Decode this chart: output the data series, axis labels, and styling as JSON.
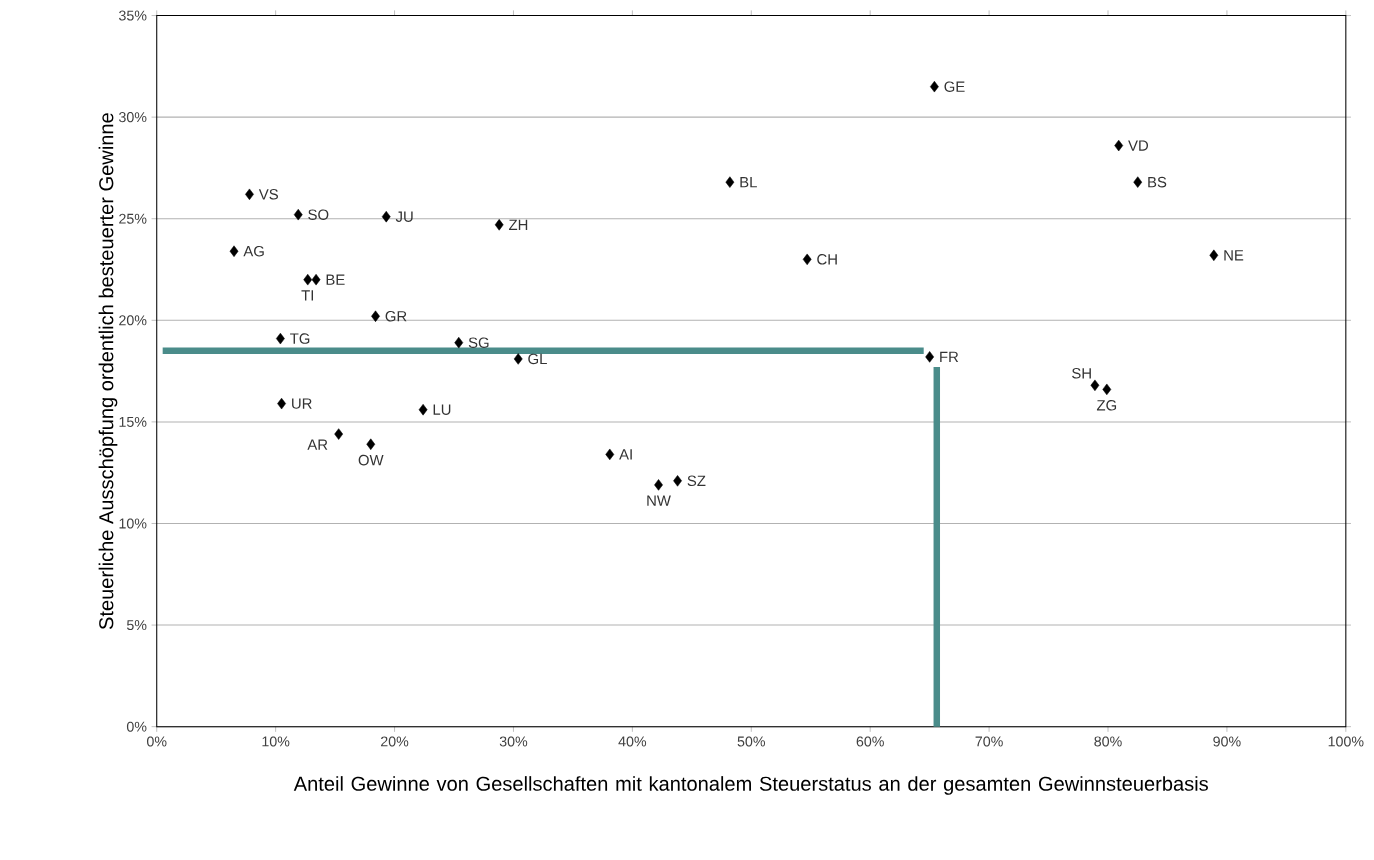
{
  "chart_data": {
    "type": "scatter",
    "xlabel": "Anteil  Gewinne von Gesellschaften mit kantonalem Steuerstatus an der gesamten Gewinnsteuerbasis",
    "ylabel": "Steuerliche Ausschöpfung ordentlich besteuerter Gewinne",
    "grid": "y",
    "xlim": [
      0,
      100
    ],
    "ylim": [
      0,
      35
    ],
    "xticks": [
      {
        "value": 0,
        "label": "0%"
      },
      {
        "value": 10,
        "label": "10%"
      },
      {
        "value": 20,
        "label": "20%"
      },
      {
        "value": 30,
        "label": "30%"
      },
      {
        "value": 40,
        "label": "40%"
      },
      {
        "value": 50,
        "label": "50%"
      },
      {
        "value": 60,
        "label": "60%"
      },
      {
        "value": 70,
        "label": "70%"
      },
      {
        "value": 80,
        "label": "80%"
      },
      {
        "value": 90,
        "label": "90%"
      },
      {
        "value": 100,
        "label": "100%"
      }
    ],
    "yticks": [
      {
        "value": 0,
        "label": "0%"
      },
      {
        "value": 5,
        "label": "5%"
      },
      {
        "value": 10,
        "label": "10%"
      },
      {
        "value": 15,
        "label": "15%"
      },
      {
        "value": 20,
        "label": "20%"
      },
      {
        "value": 25,
        "label": "25%"
      },
      {
        "value": 30,
        "label": "30%"
      },
      {
        "value": 35,
        "label": "35%"
      }
    ],
    "series": [
      {
        "marker": "diamond",
        "color": "#000000",
        "x": [
          7.8,
          11.9,
          19.3,
          28.8,
          6.5,
          13.4,
          12.7,
          18.4,
          10.4,
          25.4,
          30.4,
          10.5,
          22.4,
          15.3,
          18.0,
          38.1,
          42.2,
          43.8,
          48.2,
          54.7,
          65.4,
          80.9,
          82.5,
          88.9,
          65.0,
          78.9,
          79.9
        ],
        "values": [
          26.2,
          25.2,
          25.1,
          24.7,
          23.4,
          22.0,
          22.0,
          20.2,
          19.1,
          18.9,
          18.1,
          15.9,
          15.6,
          14.4,
          13.9,
          13.4,
          11.9,
          12.1,
          26.8,
          23.0,
          31.5,
          28.6,
          26.8,
          23.2,
          18.2,
          16.8,
          16.6
        ]
      },
      {
        "type": "line",
        "color": "#4a8c8a",
        "x": [
          0.5,
          64.5
        ],
        "values": [
          18.5,
          18.5
        ]
      },
      {
        "type": "line",
        "color": "#4a8c8a",
        "x": [
          65.6,
          65.6
        ],
        "values": [
          17.7,
          0
        ]
      }
    ],
    "annotations": [
      {
        "text": "VS",
        "x": 7.8,
        "y": 26.2
      },
      {
        "text": "SO",
        "x": 11.9,
        "y": 25.2
      },
      {
        "text": "JU",
        "x": 19.3,
        "y": 25.1
      },
      {
        "text": "ZH",
        "x": 28.8,
        "y": 24.7
      },
      {
        "text": "AG",
        "x": 6.5,
        "y": 23.4
      },
      {
        "text": "BE",
        "x": 13.4,
        "y": 22.0
      },
      {
        "text": "TI",
        "x": 12.7,
        "y": 22.0
      },
      {
        "text": "GR",
        "x": 18.4,
        "y": 20.2
      },
      {
        "text": "TG",
        "x": 10.4,
        "y": 19.1
      },
      {
        "text": "SG",
        "x": 25.4,
        "y": 18.9
      },
      {
        "text": "GL",
        "x": 30.4,
        "y": 18.1
      },
      {
        "text": "UR",
        "x": 10.5,
        "y": 15.9
      },
      {
        "text": "LU",
        "x": 22.4,
        "y": 15.6
      },
      {
        "text": "AR",
        "x": 15.3,
        "y": 14.4
      },
      {
        "text": "OW",
        "x": 18.0,
        "y": 13.9
      },
      {
        "text": "AI",
        "x": 38.1,
        "y": 13.4
      },
      {
        "text": "NW",
        "x": 42.2,
        "y": 11.9
      },
      {
        "text": "SZ",
        "x": 43.8,
        "y": 12.1
      },
      {
        "text": "BL",
        "x": 48.2,
        "y": 26.8
      },
      {
        "text": "CH",
        "x": 54.7,
        "y": 23.0
      },
      {
        "text": "GE",
        "x": 65.4,
        "y": 31.5
      },
      {
        "text": "VD",
        "x": 80.9,
        "y": 28.6
      },
      {
        "text": "BS",
        "x": 82.5,
        "y": 26.8
      },
      {
        "text": "NE",
        "x": 88.9,
        "y": 23.2
      },
      {
        "text": "FR",
        "x": 65.0,
        "y": 18.2
      },
      {
        "text": "SH",
        "x": 78.9,
        "y": 16.8
      },
      {
        "text": "ZG",
        "x": 79.9,
        "y": 16.6
      }
    ]
  }
}
